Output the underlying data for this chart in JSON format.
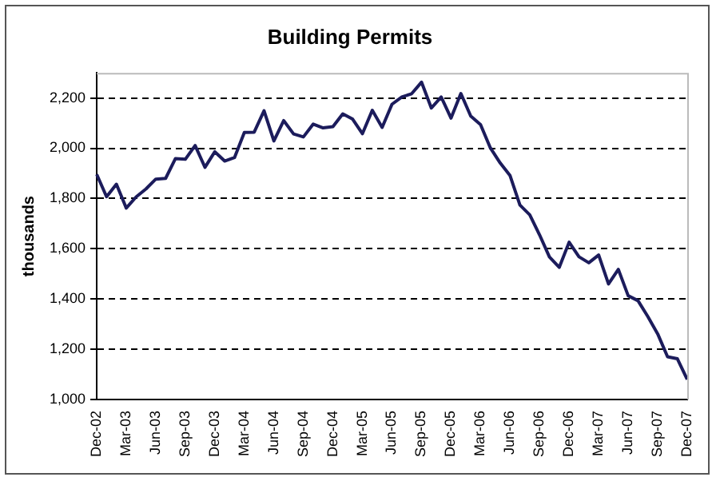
{
  "chart_data": {
    "type": "line",
    "title": "Building Permits",
    "ylabel": "thousands",
    "categories": [
      "Dec-02",
      null,
      null,
      "Mar-03",
      null,
      null,
      "Jun-03",
      null,
      null,
      "Sep-03",
      null,
      null,
      "Dec-03",
      null,
      null,
      "Mar-04",
      null,
      null,
      "Jun-04",
      null,
      null,
      "Sep-04",
      null,
      null,
      "Dec-04",
      null,
      null,
      "Mar-05",
      null,
      null,
      "Jun-05",
      null,
      null,
      "Sep-05",
      null,
      null,
      "Dec-05",
      null,
      null,
      "Mar-06",
      null,
      null,
      "Jun-06",
      null,
      null,
      "Sep-06",
      null,
      null,
      "Dec-06",
      null,
      null,
      "Mar-07",
      null,
      null,
      "Jun-07",
      null,
      null,
      "Sep-07",
      null,
      null,
      "Dec-07"
    ],
    "series": [
      {
        "color": "#1c1c5c",
        "values": [
          1896,
          1807,
          1857,
          1762,
          1806,
          1838,
          1877,
          1880,
          1959,
          1956,
          2011,
          1924,
          1986,
          1949,
          1963,
          2063,
          2064,
          2149,
          2029,
          2110,
          2057,
          2045,
          2096,
          2081,
          2086,
          2137,
          2116,
          2058,
          2151,
          2083,
          2175,
          2204,
          2217,
          2263,
          2160,
          2204,
          2120,
          2218,
          2128,
          2094,
          2001,
          1941,
          1891,
          1774,
          1735,
          1655,
          1567,
          1526,
          1626,
          1568,
          1544,
          1575,
          1460,
          1518,
          1413,
          1393,
          1330,
          1261,
          1170,
          1162,
          1080
        ]
      }
    ],
    "ylim": [
      1000,
      2300
    ],
    "yticks": [
      {
        "value": 1000,
        "label": "1,000"
      },
      {
        "value": 1200,
        "label": "1,200"
      },
      {
        "value": 1400,
        "label": "1,400"
      },
      {
        "value": 1600,
        "label": "1,600"
      },
      {
        "value": 1800,
        "label": "1,800"
      },
      {
        "value": 2000,
        "label": "2,000"
      },
      {
        "value": 2200,
        "label": "2,200"
      }
    ],
    "grid": "y",
    "legend": false,
    "marker": "none",
    "line_style": "solid"
  }
}
